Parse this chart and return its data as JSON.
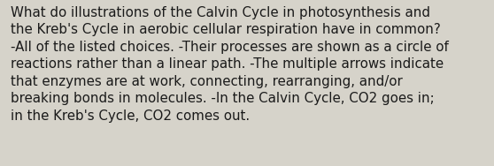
{
  "lines": [
    "What do illustrations of the Calvin Cycle in photosynthesis and",
    "the Kreb's Cycle in aerobic cellular respiration have in common?",
    "-All of the listed choices. -Their processes are shown as a circle of",
    "reactions rather than a linear path. -The multiple arrows indicate",
    "that enzymes are at work, connecting, rearranging, and/or",
    "breaking bonds in molecules. -In the Calvin Cycle, CO2 goes in;",
    "in the Kreb's Cycle, CO2 comes out."
  ],
  "background_color": "#d6d3ca",
  "text_color": "#1a1a1a",
  "font_size": 10.8,
  "font_family": "DejaVu Sans",
  "fig_width": 5.58,
  "fig_height": 1.88
}
